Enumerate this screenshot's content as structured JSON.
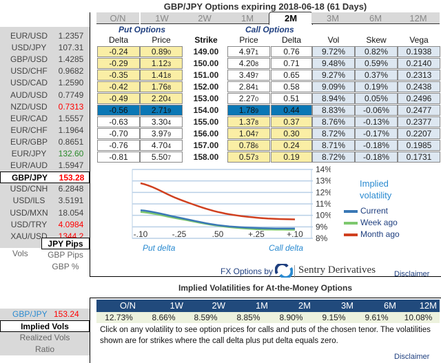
{
  "title": "GBP/JPY Options expiring 2018-06-18 (61 Days)",
  "tabs": [
    "O/N",
    "1W",
    "2W",
    "1M",
    "2M",
    "3M",
    "6M",
    "12M"
  ],
  "active_tab": "2M",
  "pairs": [
    {
      "name": "EUR/USD",
      "value": "1.2357"
    },
    {
      "name": "USD/JPY",
      "value": "107.31"
    },
    {
      "name": "GBP/USD",
      "value": "1.4285"
    },
    {
      "name": "USD/CHF",
      "value": "0.9682"
    },
    {
      "name": "USD/CAD",
      "value": "1.2590"
    },
    {
      "name": "AUD/USD",
      "value": "0.7749"
    },
    {
      "name": "NZD/USD",
      "value": "0.7313",
      "color": "red"
    },
    {
      "name": "EUR/CAD",
      "value": "1.5557"
    },
    {
      "name": "EUR/CHF",
      "value": "1.1964"
    },
    {
      "name": "EUR/GBP",
      "value": "0.8651"
    },
    {
      "name": "EUR/JPY",
      "value": "132.60",
      "color": "green"
    },
    {
      "name": "EUR/AUD",
      "value": "1.5947"
    },
    {
      "name": "GBP/JPY",
      "value": "153.28",
      "color": "red",
      "selected": true
    },
    {
      "name": "USD/CNH",
      "value": "6.2848"
    },
    {
      "name": "USD/ILS",
      "value": "3.5191"
    },
    {
      "name": "USD/MXN",
      "value": "18.054"
    },
    {
      "name": "USD/TRY",
      "value": "4.0984",
      "color": "red"
    },
    {
      "name": "XAU/USD",
      "value": "1344.2",
      "color": "red"
    }
  ],
  "units": {
    "label": "Vols",
    "options": [
      "JPY Pips",
      "GBP Pips",
      "GBP %"
    ],
    "selected": "JPY Pips"
  },
  "groups": {
    "put": "Put Options",
    "call": "Call Options"
  },
  "headers": {
    "put_delta": "Delta",
    "put_price": "Price",
    "strike": "Strike",
    "call_price": "Price",
    "call_delta": "Delta",
    "vol": "Vol",
    "skew": "Skew",
    "vega": "Vega"
  },
  "rows": [
    {
      "pd": "-0.24",
      "pp": "0.89",
      "pps": "0",
      "k": "149.00",
      "cp": "4.97",
      "cps": "1",
      "cd": "0.76",
      "vol": "9.72%",
      "skew": "0.82%",
      "vega": "0.1938"
    },
    {
      "pd": "-0.29",
      "pp": "1.12",
      "pps": "3",
      "k": "150.00",
      "cp": "4.20",
      "cps": "8",
      "cd": "0.71",
      "vol": "9.48%",
      "skew": "0.59%",
      "vega": "0.2140"
    },
    {
      "pd": "-0.35",
      "pp": "1.41",
      "pps": "8",
      "k": "151.00",
      "cp": "3.49",
      "cps": "7",
      "cd": "0.65",
      "vol": "9.27%",
      "skew": "0.37%",
      "vega": "0.2313"
    },
    {
      "pd": "-0.42",
      "pp": "1.76",
      "pps": "8",
      "k": "152.00",
      "cp": "2.84",
      "cps": "1",
      "cd": "0.58",
      "vol": "9.09%",
      "skew": "0.19%",
      "vega": "0.2438"
    },
    {
      "pd": "-0.49",
      "pp": "2.20",
      "pps": "4",
      "k": "153.00",
      "cp": "2.27",
      "cps": "0",
      "cd": "0.51",
      "vol": "8.94%",
      "skew": "0.05%",
      "vega": "0.2496"
    },
    {
      "pd": "-0.56",
      "pp": "2.71",
      "pps": "9",
      "k": "154.00",
      "cp": "1.78",
      "cps": "9",
      "cd": "0.44",
      "vol": "8.83%",
      "skew": "-0.06%",
      "vega": "0.2477"
    },
    {
      "pd": "-0.63",
      "pp": "3.30",
      "pps": "4",
      "k": "155.00",
      "cp": "1.37",
      "cps": "8",
      "cd": "0.37",
      "vol": "8.76%",
      "skew": "-0.13%",
      "vega": "0.2377"
    },
    {
      "pd": "-0.70",
      "pp": "3.97",
      "pps": "9",
      "k": "156.00",
      "cp": "1.04",
      "cps": "7",
      "cd": "0.30",
      "vol": "8.72%",
      "skew": "-0.17%",
      "vega": "0.2207"
    },
    {
      "pd": "-0.76",
      "pp": "4.70",
      "pps": "4",
      "k": "157.00",
      "cp": "0.78",
      "cps": "6",
      "cd": "0.24",
      "vol": "8.71%",
      "skew": "-0.18%",
      "vega": "0.1985"
    },
    {
      "pd": "-0.81",
      "pp": "5.50",
      "pps": "7",
      "k": "158.00",
      "cp": "0.57",
      "cps": "3",
      "cd": "0.19",
      "vol": "8.72%",
      "skew": "-0.18%",
      "vega": "0.1731"
    }
  ],
  "colors": {
    "itm": "#faeea5",
    "atm": "#0a77b5",
    "vol_cols": "#dde7f1",
    "current": "#3a78b5",
    "week_ago": "#7ec86e",
    "month_ago": "#d0401f"
  },
  "chart_data": {
    "type": "line",
    "title": "Implied volatility",
    "categories": [
      "-.10",
      "-.25",
      ".50",
      "+.25",
      "+.10"
    ],
    "xlabel_left": "Put delta",
    "xlabel_right": "Call delta",
    "yticks": [
      "14%",
      "13%",
      "12%",
      "11%",
      "10%",
      "9%",
      "8%"
    ],
    "ylim": [
      8,
      14
    ],
    "grid": true,
    "legend": "right",
    "series": [
      {
        "name": "Current",
        "values": [
          10.45,
          9.8,
          9.15,
          8.9,
          8.85
        ]
      },
      {
        "name": "Week ago",
        "values": [
          10.3,
          9.7,
          9.1,
          8.8,
          8.75
        ]
      },
      {
        "name": "Month ago",
        "values": [
          12.8,
          11.4,
          10.3,
          9.8,
          9.65
        ]
      }
    ]
  },
  "brand": {
    "prefix": "FX Options by",
    "name": "Sentry Derivatives"
  },
  "disclaimer": "Disclaimer",
  "atm": {
    "title": "Implied Volatilities for At-the-Money Options",
    "pair": "GBP/JPY",
    "rate": "153.24",
    "tenors": [
      "O/N",
      "1W",
      "2W",
      "1M",
      "2M",
      "3M",
      "6M",
      "12M"
    ],
    "values": [
      "12.73%",
      "8.66%",
      "8.59%",
      "8.85%",
      "8.90%",
      "9.15%",
      "9.61%",
      "10.08%"
    ],
    "note": "Click on any volatility to see option prices for calls and puts of the chosen tenor. The volatilities shown are for strikes where the call delta plus put delta equals zero.",
    "menu": [
      "Implied Vols",
      "Realized Vols",
      "Ratio"
    ],
    "menu_selected": "Implied Vols"
  }
}
